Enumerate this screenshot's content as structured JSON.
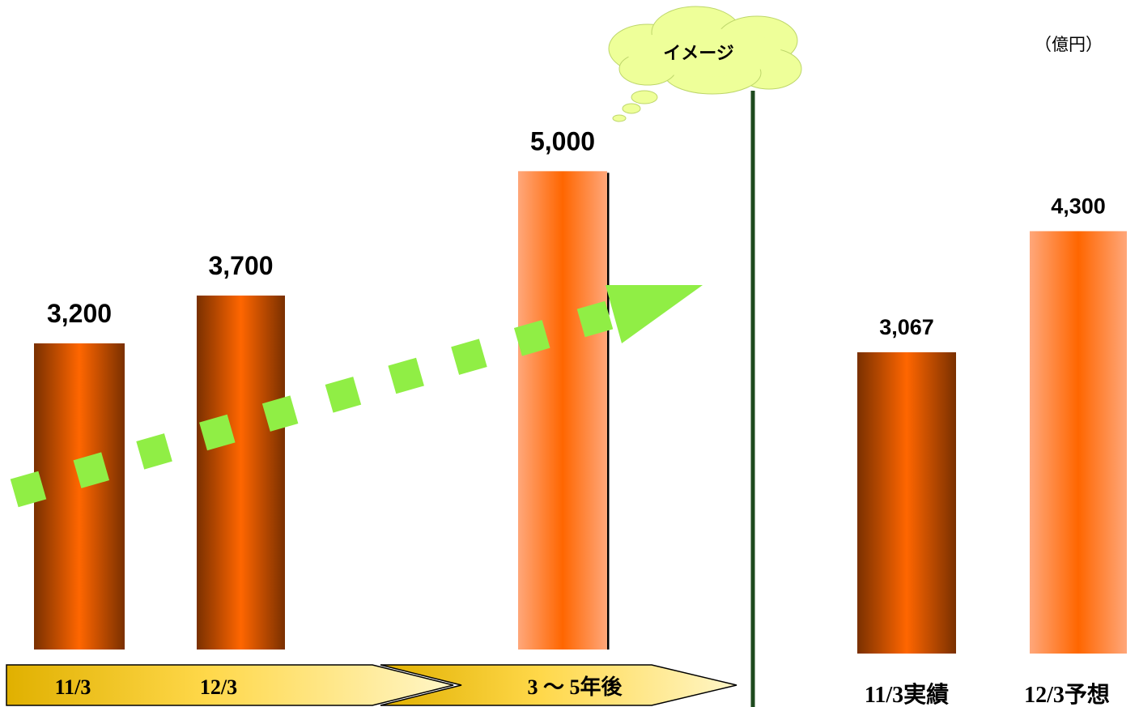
{
  "chart_data": [
    {
      "type": "bar",
      "categories": [
        "11/3",
        "12/3",
        "3 〜 5年後"
      ],
      "values": [
        3200,
        3700,
        5000
      ],
      "value_labels": [
        "3,200",
        "3,700",
        "5,000"
      ],
      "annotation": "イメージ",
      "trend_arrow": true
    },
    {
      "type": "bar",
      "categories": [
        "11/3実績",
        "12/3予想"
      ],
      "values": [
        3067,
        4300
      ],
      "value_labels": [
        "3,067",
        "4,300"
      ],
      "unit": "（億円）"
    }
  ],
  "colors": {
    "bar_dark": "#7a3000",
    "bar_mid": "#ff6600",
    "bar_light": "#ffa77a",
    "timeline_gold": "#e0b000",
    "timeline_light": "#fff3b0",
    "divider": "#1e4a1e",
    "trend": "#90ee45",
    "cloud": "#eeff99"
  }
}
